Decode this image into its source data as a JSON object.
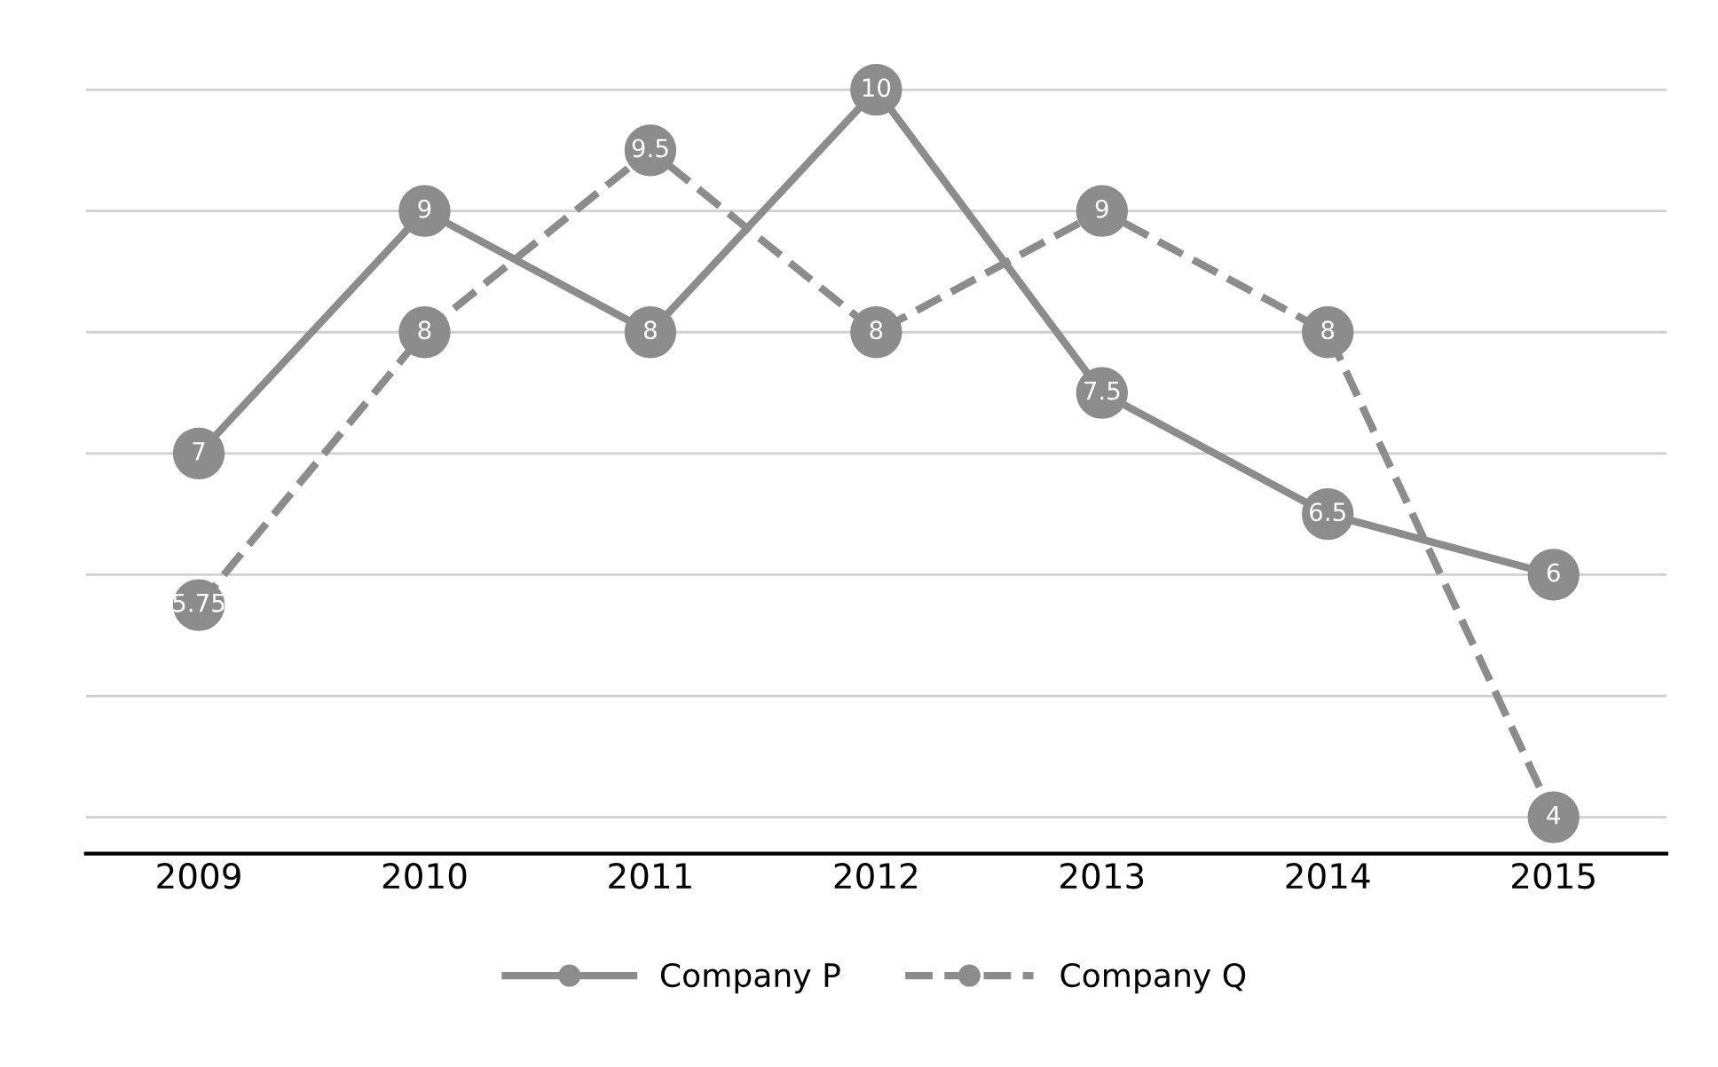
{
  "chart_data": {
    "type": "line",
    "categories": [
      "2009",
      "2010",
      "2011",
      "2012",
      "2013",
      "2014",
      "2015"
    ],
    "series": [
      {
        "name": "Company P",
        "color": "#8c8c8c",
        "line_style": "solid",
        "values": [
          7,
          9,
          8,
          10,
          7.5,
          6.5,
          6
        ]
      },
      {
        "name": "Company Q",
        "color": "#8c8c8c",
        "line_style": "dashed",
        "values": [
          5.75,
          8,
          9.5,
          8,
          9,
          8,
          4
        ]
      }
    ],
    "tick_labels": "x",
    "grid": "y",
    "legend": "bottom",
    "marker": "circle",
    "data_labels": true
  }
}
